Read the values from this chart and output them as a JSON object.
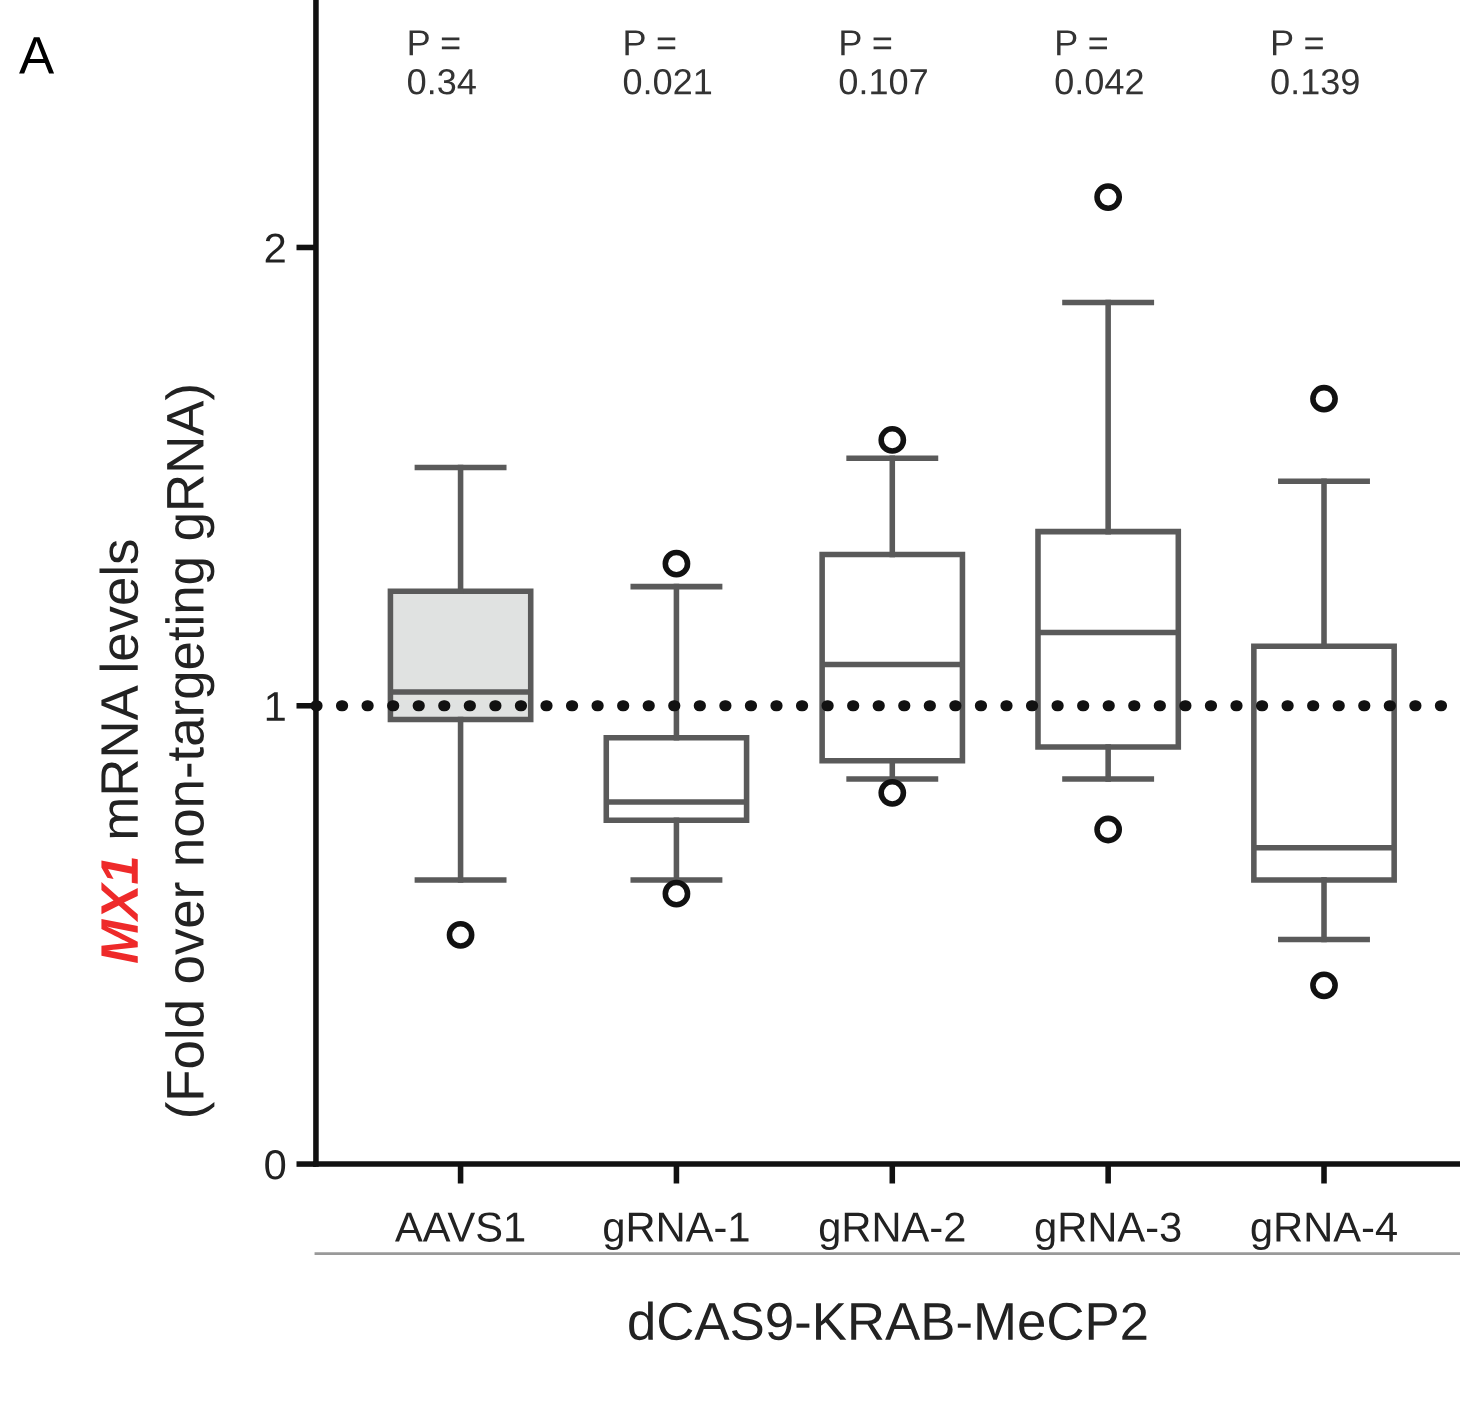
{
  "chart_data": {
    "type": "box",
    "xlabel": "dCAS9-KRAB-MeCP2",
    "ylabel": "MX1 mRNA levels\n(Fold over non-targeting gRNA)",
    "categories": [
      "AAVS1",
      "gRNA-1",
      "gRNA-2",
      "gRNA-3",
      "gRNA-4"
    ],
    "colors": [
      "#e0e2e1",
      "#ffffff",
      "#ffffff",
      "#ffffff",
      "#ffffff"
    ],
    "boxes": [
      {
        "low": 0.62,
        "q1": 0.97,
        "median": 1.03,
        "q3": 1.25,
        "high": 1.52,
        "outliers": [
          0.5
        ]
      },
      {
        "low": 0.62,
        "q1": 0.75,
        "median": 0.79,
        "q3": 0.93,
        "high": 1.26,
        "outliers": [
          1.31,
          0.59
        ]
      },
      {
        "low": 0.84,
        "q1": 0.88,
        "median": 1.09,
        "q3": 1.33,
        "high": 1.54,
        "outliers": [
          1.58,
          0.81
        ]
      },
      {
        "low": 0.84,
        "q1": 0.91,
        "median": 1.16,
        "q3": 1.38,
        "high": 1.88,
        "outliers": [
          2.11,
          0.73
        ]
      },
      {
        "low": 0.49,
        "q1": 0.62,
        "median": 0.69,
        "q3": 1.13,
        "high": 1.49,
        "outliers": [
          1.67,
          0.39
        ]
      }
    ],
    "ylim": [
      0,
      2.54
    ],
    "yticks": [
      0,
      1,
      2
    ],
    "ref_lines": [
      {
        "axis": "y",
        "value": 1,
        "color": "#111111",
        "line_style": "dotted"
      }
    ],
    "annotations": [
      "A",
      "P =\n0.34",
      "P =\n0.021",
      "P =\n0.107",
      "P =\n0.042",
      "P =\n0.139"
    ],
    "grid": false
  }
}
